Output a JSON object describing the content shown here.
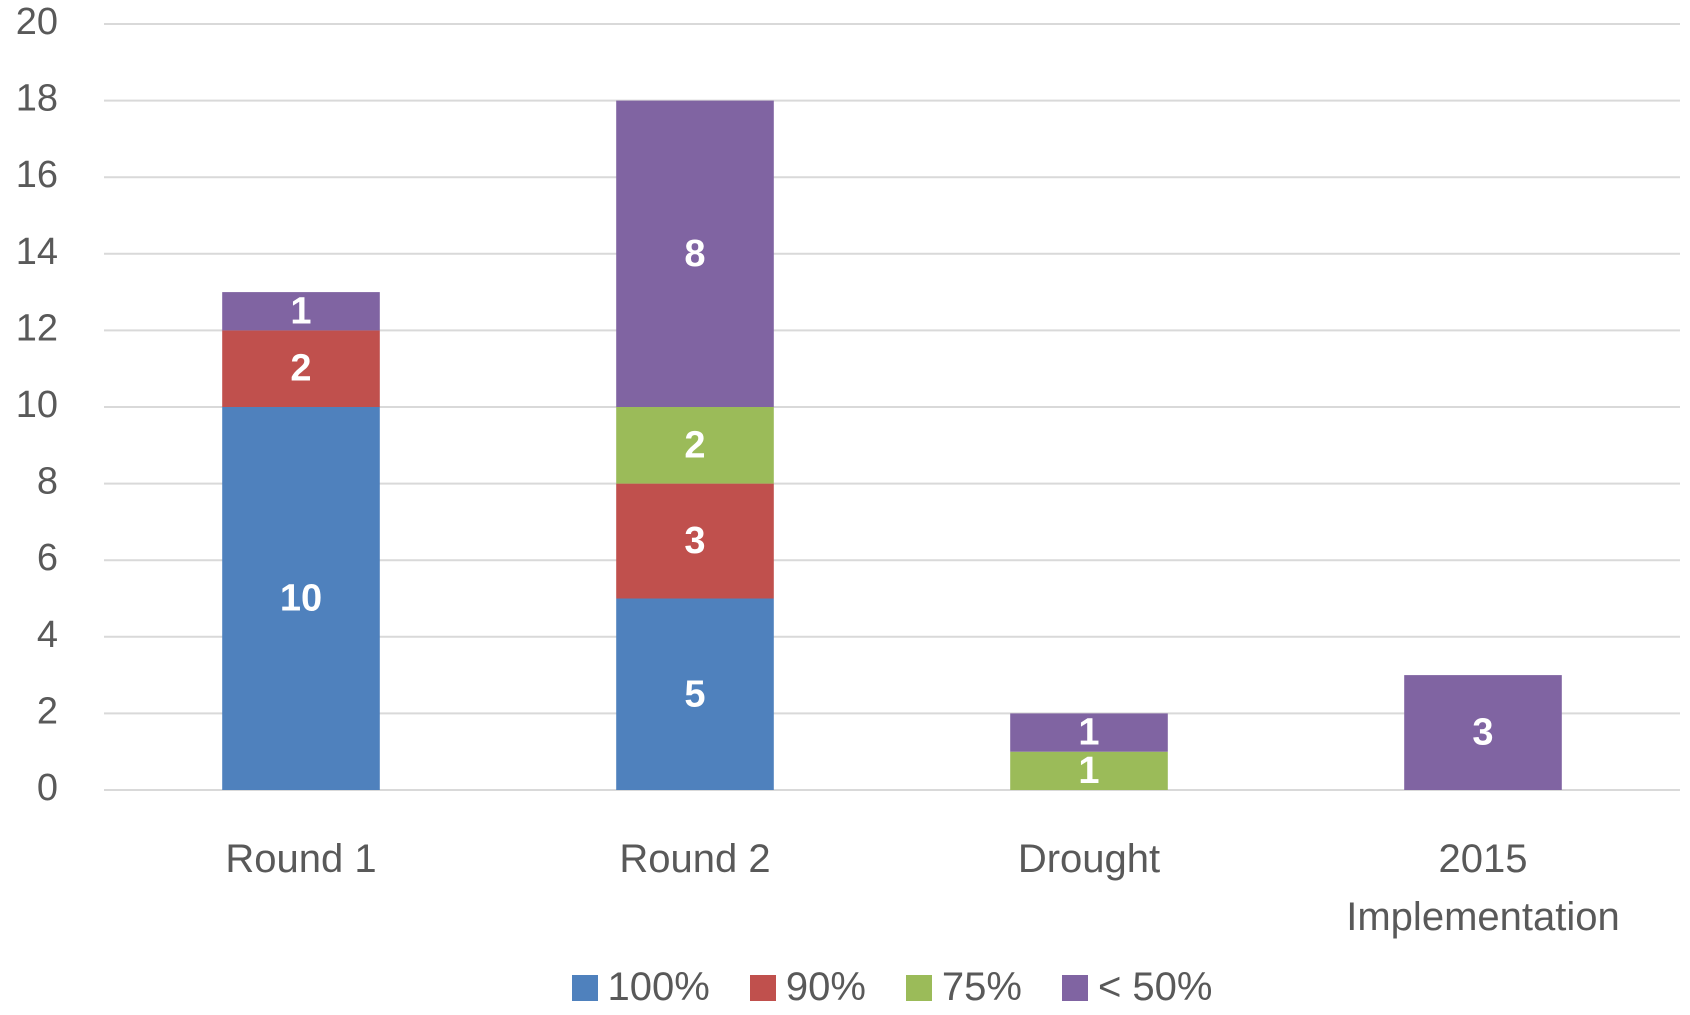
{
  "chart_data": {
    "type": "stacked_bar",
    "categories": [
      "Round 1",
      "Round 2",
      "Drought",
      "2015 Implementation"
    ],
    "series": [
      {
        "name": "100%",
        "color": "#4f81bd",
        "values": [
          10,
          5,
          null,
          null
        ]
      },
      {
        "name": "90%",
        "color": "#c0504d",
        "values": [
          2,
          3,
          null,
          null
        ]
      },
      {
        "name": "75%",
        "color": "#9bbb59",
        "values": [
          null,
          2,
          1,
          null
        ]
      },
      {
        "name": "< 50%",
        "color": "#8064a2",
        "values": [
          1,
          8,
          1,
          3
        ]
      }
    ],
    "ylim": [
      0,
      20
    ],
    "yticks": [
      0,
      2,
      4,
      6,
      8,
      10,
      12,
      14,
      16,
      18,
      20
    ],
    "grid": true,
    "legend": "bottom"
  }
}
